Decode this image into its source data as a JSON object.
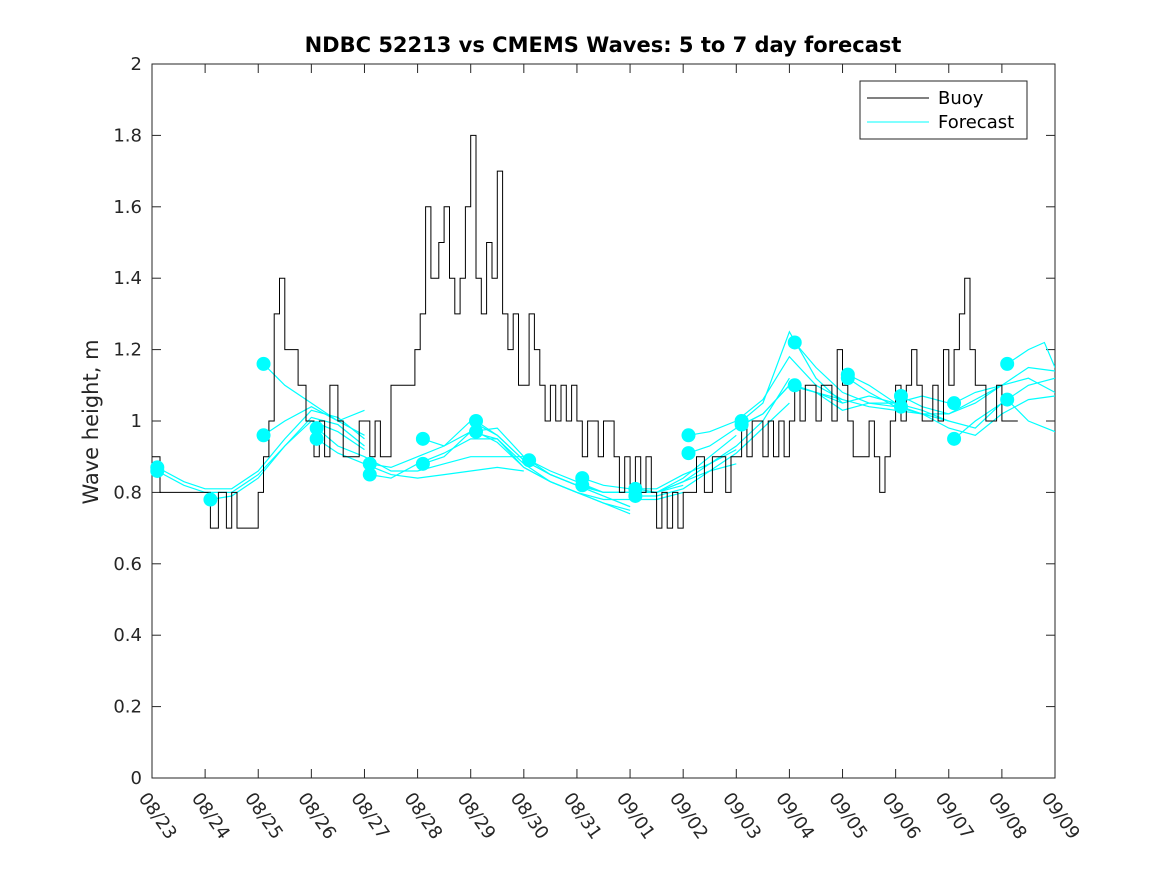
{
  "chart_data": {
    "type": "line",
    "title": "NDBC 52213 vs CMEMS Waves: 5 to 7 day forecast",
    "xlabel": "",
    "ylabel": "Wave height, m",
    "ylim": [
      0,
      2
    ],
    "yticks": [
      0,
      0.2,
      0.4,
      0.6,
      0.8,
      1,
      1.2,
      1.4,
      1.6,
      1.8,
      2
    ],
    "ytick_labels": [
      "0",
      "0.2",
      "0.4",
      "0.6",
      "0.8",
      "1",
      "1.2",
      "1.4",
      "1.6",
      "1.8",
      "2"
    ],
    "xlim": [
      0,
      17
    ],
    "x_unit": "days since 08/23",
    "xtick_labels": [
      "08/23",
      "08/24",
      "08/25",
      "08/26",
      "08/27",
      "08/28",
      "08/29",
      "08/30",
      "08/31",
      "09/01",
      "09/02",
      "09/03",
      "09/04",
      "09/05",
      "09/06",
      "09/07",
      "09/08",
      "09/09"
    ],
    "grid": false,
    "legend": {
      "position": "top-right",
      "entries": [
        {
          "label": "Buoy",
          "color": "#000000"
        },
        {
          "label": "Forecast",
          "color": "#00FFFF"
        }
      ]
    },
    "colors": {
      "buoy": "#000000",
      "forecast": "#00FFFF"
    },
    "series": [
      {
        "name": "Buoy",
        "color": "#000000",
        "x": [
          0,
          0.15,
          0.4,
          0.6,
          0.8,
          1.0,
          1.1,
          1.25,
          1.4,
          1.5,
          1.6,
          1.75,
          1.9,
          2.0,
          2.1,
          2.2,
          2.3,
          2.4,
          2.5,
          2.6,
          2.75,
          2.9,
          2.95,
          3.05,
          3.15,
          3.25,
          3.35,
          3.5,
          3.6,
          3.75,
          3.9,
          4.0,
          4.1,
          4.2,
          4.3,
          4.5,
          4.7,
          4.85,
          4.95,
          5.05,
          5.15,
          5.25,
          5.4,
          5.5,
          5.6,
          5.7,
          5.8,
          5.9,
          6.0,
          6.1,
          6.2,
          6.3,
          6.4,
          6.5,
          6.6,
          6.7,
          6.8,
          6.9,
          7.0,
          7.1,
          7.2,
          7.3,
          7.4,
          7.5,
          7.6,
          7.7,
          7.8,
          7.9,
          8.0,
          8.1,
          8.2,
          8.3,
          8.4,
          8.5,
          8.6,
          8.7,
          8.8,
          8.9,
          9.0,
          9.1,
          9.2,
          9.3,
          9.4,
          9.5,
          9.6,
          9.7,
          9.8,
          9.9,
          10.0,
          10.1,
          10.25,
          10.4,
          10.55,
          10.7,
          10.8,
          10.9,
          11.0,
          11.1,
          11.2,
          11.3,
          11.4,
          11.5,
          11.6,
          11.7,
          11.8,
          11.9,
          12.0,
          12.1,
          12.2,
          12.3,
          12.4,
          12.5,
          12.6,
          12.7,
          12.8,
          12.9,
          13.0,
          13.1,
          13.2,
          13.3,
          13.4,
          13.5,
          13.6,
          13.7,
          13.8,
          13.9,
          14.0,
          14.1,
          14.2,
          14.3,
          14.4,
          14.5,
          14.6,
          14.7,
          14.8,
          14.9,
          15.0,
          15.1,
          15.2,
          15.3,
          15.4,
          15.5,
          15.6,
          15.7,
          15.8,
          15.9,
          16.0,
          16.1,
          16.2,
          16.3
        ],
        "y": [
          0.9,
          0.8,
          0.8,
          0.8,
          0.8,
          0.8,
          0.7,
          0.8,
          0.7,
          0.8,
          0.7,
          0.7,
          0.7,
          0.8,
          0.9,
          1.0,
          1.3,
          1.4,
          1.2,
          1.2,
          1.1,
          1.0,
          1.0,
          0.9,
          1.0,
          0.9,
          1.1,
          1.0,
          0.9,
          0.9,
          1.0,
          1.0,
          0.9,
          1.0,
          0.9,
          1.1,
          1.1,
          1.1,
          1.2,
          1.3,
          1.6,
          1.4,
          1.5,
          1.6,
          1.4,
          1.3,
          1.4,
          1.6,
          1.8,
          1.4,
          1.3,
          1.5,
          1.4,
          1.7,
          1.3,
          1.2,
          1.3,
          1.1,
          1.1,
          1.3,
          1.2,
          1.1,
          1.0,
          1.1,
          1.0,
          1.1,
          1.0,
          1.1,
          1.0,
          0.9,
          1.0,
          1.0,
          0.9,
          1.0,
          1.0,
          0.9,
          0.8,
          0.9,
          0.8,
          0.9,
          0.8,
          0.9,
          0.8,
          0.7,
          0.8,
          0.7,
          0.8,
          0.7,
          0.8,
          0.8,
          0.9,
          0.8,
          0.9,
          0.9,
          0.8,
          0.9,
          0.9,
          1.0,
          0.9,
          1.0,
          1.0,
          0.9,
          1.0,
          0.9,
          1.0,
          0.9,
          1.0,
          1.1,
          1.0,
          1.1,
          1.1,
          1.0,
          1.1,
          1.1,
          1.0,
          1.2,
          1.1,
          1.0,
          0.9,
          0.9,
          0.9,
          1.0,
          0.9,
          0.8,
          0.9,
          1.0,
          1.1,
          1.0,
          1.1,
          1.2,
          1.1,
          1.0,
          1.0,
          1.1,
          1.0,
          1.2,
          1.1,
          1.2,
          1.3,
          1.4,
          1.2,
          1.1,
          1.1,
          1.0,
          1.0,
          1.1,
          1.0,
          1.0,
          1.0,
          1.0
        ]
      }
    ],
    "forecast_series": [
      {
        "name": "Forecast",
        "x": [
          0.1,
          0.6,
          1.0,
          1.5,
          2.0,
          2.5,
          3.0,
          3.5,
          4.0
        ],
        "y": [
          0.87,
          0.83,
          0.81,
          0.81,
          0.86,
          0.95,
          1.03,
          1.01,
          0.95
        ]
      },
      {
        "name": "Forecast",
        "x": [
          0.1,
          0.6,
          1.0,
          1.5,
          2.0,
          2.5,
          3.0,
          3.5,
          4.0
        ],
        "y": [
          0.86,
          0.82,
          0.8,
          0.8,
          0.85,
          0.93,
          1.01,
          0.99,
          0.93
        ]
      },
      {
        "name": "Forecast",
        "x": [
          1.1,
          1.5,
          2.0,
          2.5,
          3.0,
          3.5,
          4.0
        ],
        "y": [
          0.78,
          0.79,
          0.84,
          0.93,
          1.0,
          0.97,
          0.92
        ]
      },
      {
        "name": "Forecast",
        "x": [
          2.1,
          2.5,
          3.0,
          3.5,
          4.0
        ],
        "y": [
          1.16,
          1.1,
          1.05,
          1.0,
          1.03
        ]
      },
      {
        "name": "Forecast",
        "x": [
          2.1,
          2.5,
          3.0,
          3.5,
          4.0
        ],
        "y": [
          0.96,
          1.0,
          1.04,
          1.0,
          0.96
        ]
      },
      {
        "name": "Forecast",
        "x": [
          3.1,
          3.5,
          4.0,
          4.5,
          5.0,
          5.5,
          6.0,
          6.5,
          7.0
        ],
        "y": [
          0.98,
          0.93,
          0.9,
          0.86,
          0.86,
          0.88,
          0.9,
          0.9,
          0.9
        ]
      },
      {
        "name": "Forecast",
        "x": [
          3.1,
          3.5,
          4.0,
          4.5,
          5.0,
          5.5,
          6.0,
          6.5,
          7.0
        ],
        "y": [
          0.95,
          0.91,
          0.88,
          0.85,
          0.84,
          0.85,
          0.86,
          0.87,
          0.86
        ]
      },
      {
        "name": "Forecast",
        "x": [
          4.1,
          4.5,
          5.0,
          5.5,
          6.0,
          6.5,
          7.0,
          7.5,
          8.0,
          8.5,
          9.0
        ],
        "y": [
          0.88,
          0.87,
          0.9,
          0.93,
          0.97,
          0.98,
          0.9,
          0.85,
          0.82,
          0.79,
          0.76
        ]
      },
      {
        "name": "Forecast",
        "x": [
          4.1,
          4.5,
          5.0,
          5.5,
          6.0,
          6.5,
          7.0,
          7.5,
          8.0,
          8.5,
          9.0
        ],
        "y": [
          0.85,
          0.84,
          0.88,
          0.91,
          0.95,
          0.95,
          0.88,
          0.83,
          0.8,
          0.77,
          0.75
        ]
      },
      {
        "name": "Forecast",
        "x": [
          5.1,
          5.5,
          6.0,
          6.5,
          7.0,
          7.5,
          8.0,
          8.5,
          9.0
        ],
        "y": [
          0.95,
          0.93,
          1.0,
          0.96,
          0.89,
          0.85,
          0.82,
          0.79,
          0.76
        ]
      },
      {
        "name": "Forecast",
        "x": [
          5.1,
          5.5,
          6.0,
          6.5,
          7.0,
          7.5,
          8.0,
          8.5,
          9.0
        ],
        "y": [
          0.88,
          0.9,
          0.97,
          0.95,
          0.87,
          0.83,
          0.8,
          0.77,
          0.74
        ]
      },
      {
        "name": "Forecast",
        "x": [
          6.1,
          6.5,
          7.0,
          7.5,
          8.0,
          8.5,
          9.0,
          9.5,
          10.0
        ],
        "y": [
          1.0,
          0.96,
          0.89,
          0.85,
          0.82,
          0.8,
          0.8,
          0.8,
          0.82
        ]
      },
      {
        "name": "Forecast",
        "x": [
          6.1,
          6.5,
          7.0,
          7.5,
          8.0,
          8.5,
          9.0,
          9.5,
          10.0
        ],
        "y": [
          0.97,
          0.94,
          0.87,
          0.83,
          0.8,
          0.78,
          0.78,
          0.78,
          0.8
        ]
      },
      {
        "name": "Forecast",
        "x": [
          7.1,
          7.5,
          8.0,
          8.5,
          9.0,
          9.5,
          10.0,
          10.5,
          11.0
        ],
        "y": [
          0.89,
          0.86,
          0.83,
          0.8,
          0.8,
          0.8,
          0.84,
          0.9,
          0.96
        ]
      },
      {
        "name": "Forecast",
        "x": [
          8.1,
          8.5,
          9.0,
          9.5,
          10.0,
          10.5,
          11.0
        ],
        "y": [
          0.84,
          0.82,
          0.81,
          0.81,
          0.85,
          0.88,
          0.92
        ]
      },
      {
        "name": "Forecast",
        "x": [
          8.1,
          8.5,
          9.0,
          9.5,
          10.0,
          10.5,
          11.0
        ],
        "y": [
          0.82,
          0.8,
          0.8,
          0.8,
          0.83,
          0.86,
          0.88
        ]
      },
      {
        "name": "Forecast",
        "x": [
          9.1,
          9.5,
          10.0,
          10.5,
          11.0,
          11.5,
          12.0
        ],
        "y": [
          0.81,
          0.8,
          0.83,
          0.88,
          0.93,
          1.0,
          1.12
        ]
      },
      {
        "name": "Forecast",
        "x": [
          9.1,
          9.5,
          10.0,
          10.5,
          11.0,
          11.5,
          12.0
        ],
        "y": [
          0.79,
          0.79,
          0.81,
          0.86,
          0.91,
          0.98,
          1.05
        ]
      },
      {
        "name": "Forecast",
        "x": [
          10.1,
          10.5,
          11.0,
          11.5,
          12.0,
          12.5,
          13.0
        ],
        "y": [
          0.96,
          0.97,
          1.0,
          1.06,
          1.18,
          1.1,
          1.06
        ]
      },
      {
        "name": "Forecast",
        "x": [
          10.1,
          10.5,
          11.0,
          11.5,
          12.0,
          12.5,
          13.0
        ],
        "y": [
          0.91,
          0.93,
          0.98,
          1.02,
          1.1,
          1.08,
          1.05
        ]
      },
      {
        "name": "Forecast",
        "x": [
          11.1,
          11.5,
          12.0,
          12.5,
          13.0,
          13.5,
          14.0
        ],
        "y": [
          1.0,
          1.05,
          1.25,
          1.12,
          1.05,
          1.07,
          1.05
        ]
      },
      {
        "name": "Forecast",
        "x": [
          11.1,
          11.5,
          12.0,
          12.5,
          13.0,
          13.5,
          14.0
        ],
        "y": [
          0.99,
          1.02,
          1.1,
          1.08,
          1.03,
          1.05,
          1.04
        ]
      },
      {
        "name": "Forecast",
        "x": [
          12.1,
          12.5,
          13.0,
          13.5,
          14.0,
          14.5,
          15.0
        ],
        "y": [
          1.22,
          1.15,
          1.08,
          1.05,
          1.05,
          1.07,
          1.05
        ]
      },
      {
        "name": "Forecast",
        "x": [
          12.1,
          12.5,
          13.0,
          13.5,
          14.0,
          14.5,
          15.0
        ],
        "y": [
          1.1,
          1.08,
          1.06,
          1.04,
          1.03,
          1.02,
          1.0
        ]
      },
      {
        "name": "Forecast",
        "x": [
          13.1,
          13.5,
          14.0,
          14.5,
          15.0,
          15.5,
          16.0
        ],
        "y": [
          1.13,
          1.1,
          1.05,
          1.03,
          1.0,
          0.98,
          1.05
        ]
      },
      {
        "name": "Forecast",
        "x": [
          13.1,
          13.5,
          14.0,
          14.5,
          15.0,
          15.5,
          16.0
        ],
        "y": [
          1.12,
          1.08,
          1.04,
          1.02,
          1.02,
          1.06,
          1.1
        ]
      },
      {
        "name": "Forecast",
        "x": [
          14.1,
          14.5,
          15.0,
          15.5,
          16.0,
          16.5,
          17.0
        ],
        "y": [
          1.07,
          1.04,
          1.02,
          1.05,
          1.1,
          1.12,
          1.08
        ]
      },
      {
        "name": "Forecast",
        "x": [
          14.1,
          14.5,
          15.0,
          15.5,
          16.0,
          16.5,
          17.0
        ],
        "y": [
          1.04,
          1.02,
          0.98,
          0.96,
          1.02,
          1.06,
          1.07
        ]
      },
      {
        "name": "Forecast",
        "x": [
          15.1,
          15.5,
          16.0,
          16.5,
          17.0
        ],
        "y": [
          1.05,
          1.08,
          1.1,
          1.15,
          1.14
        ]
      },
      {
        "name": "Forecast",
        "x": [
          15.1,
          15.5,
          16.0,
          16.5,
          17.0
        ],
        "y": [
          0.95,
          1.0,
          1.05,
          1.1,
          1.12
        ]
      },
      {
        "name": "Forecast",
        "x": [
          16.1,
          16.5,
          16.8,
          17.0
        ],
        "y": [
          1.16,
          1.2,
          1.22,
          1.15
        ]
      },
      {
        "name": "Forecast",
        "x": [
          16.1,
          16.5,
          17.0
        ],
        "y": [
          1.06,
          1.0,
          0.97
        ]
      }
    ],
    "forecast_markers": {
      "x": [
        0.1,
        0.1,
        1.1,
        2.1,
        2.1,
        3.1,
        3.1,
        4.1,
        4.1,
        5.1,
        5.1,
        6.1,
        6.1,
        7.1,
        8.1,
        8.1,
        9.1,
        9.1,
        10.1,
        10.1,
        11.1,
        11.1,
        12.1,
        12.1,
        13.1,
        13.1,
        14.1,
        14.1,
        15.1,
        15.1,
        16.1,
        16.1
      ],
      "y": [
        0.87,
        0.86,
        0.78,
        1.16,
        0.96,
        0.98,
        0.95,
        0.88,
        0.85,
        0.95,
        0.88,
        1.0,
        0.97,
        0.89,
        0.84,
        0.82,
        0.81,
        0.79,
        0.96,
        0.91,
        1.0,
        0.99,
        1.22,
        1.1,
        1.13,
        1.12,
        1.07,
        1.04,
        1.05,
        0.95,
        1.16,
        1.06
      ]
    }
  }
}
